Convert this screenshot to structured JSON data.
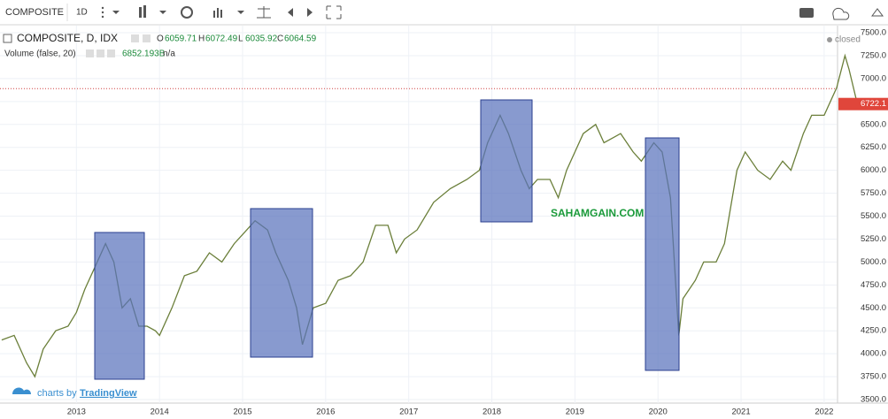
{
  "toolbar": {
    "symbol": "COMPOSITE",
    "interval": "1D"
  },
  "legend": {
    "title": "COMPOSITE, D, IDX",
    "o_label": "O",
    "open": "6059.71",
    "h_label": "H",
    "high": "6072.49",
    "l_label": "L",
    "low": "6035.92",
    "c_label": "C",
    "close": "6064.59",
    "volume_title": "Volume (false, 20)",
    "volume_value": "6852.193B",
    "volume_extra": "n/a",
    "status": "closed"
  },
  "watermark": "SAHAMGAIN.COM",
  "branding": {
    "prefix": "charts by",
    "name": "TradingView"
  },
  "chart_data": {
    "type": "line",
    "x": [
      2012.1,
      2012.25,
      2012.4,
      2012.5,
      2012.6,
      2012.75,
      2012.9,
      2013.0,
      2013.1,
      2013.2,
      2013.35,
      2013.45,
      2013.55,
      2013.65,
      2013.75,
      2013.85,
      2013.95,
      2014.0,
      2014.15,
      2014.3,
      2014.45,
      2014.6,
      2014.75,
      2014.9,
      2015.0,
      2015.15,
      2015.3,
      2015.4,
      2015.55,
      2015.65,
      2015.72,
      2015.85,
      2016.0,
      2016.15,
      2016.3,
      2016.45,
      2016.6,
      2016.75,
      2016.85,
      2016.95,
      2017.1,
      2017.3,
      2017.5,
      2017.7,
      2017.85,
      2017.95,
      2018.1,
      2018.2,
      2018.35,
      2018.45,
      2018.55,
      2018.7,
      2018.8,
      2018.9,
      2019.0,
      2019.1,
      2019.25,
      2019.35,
      2019.45,
      2019.55,
      2019.7,
      2019.8,
      2019.95,
      2020.05,
      2020.15,
      2020.25,
      2020.3,
      2020.45,
      2020.55,
      2020.7,
      2020.8,
      2020.95,
      2021.05,
      2021.2,
      2021.35,
      2021.5,
      2021.6,
      2021.75,
      2021.85,
      2022.0,
      2022.15,
      2022.25,
      2022.3,
      2022.4
    ],
    "series": [
      {
        "name": "COMPOSITE",
        "color": "#6b7f3a",
        "values": [
          4150,
          4200,
          3900,
          3750,
          4050,
          4250,
          4300,
          4450,
          4700,
          4900,
          5200,
          5000,
          4500,
          4600,
          4300,
          4300,
          4250,
          4200,
          4500,
          4850,
          4900,
          5100,
          5000,
          5200,
          5300,
          5450,
          5350,
          5100,
          4800,
          4500,
          4100,
          4500,
          4550,
          4800,
          4850,
          5000,
          5400,
          5400,
          5100,
          5250,
          5350,
          5650,
          5800,
          5900,
          6000,
          6300,
          6600,
          6400,
          6000,
          5800,
          5900,
          5900,
          5700,
          6000,
          6200,
          6400,
          6500,
          6300,
          6350,
          6400,
          6200,
          6100,
          6300,
          6200,
          5700,
          4200,
          4600,
          4800,
          5000,
          5000,
          5200,
          6000,
          6200,
          6000,
          5900,
          6100,
          6000,
          6400,
          6600,
          6600,
          6900,
          7250,
          7100,
          6722.1
        ]
      }
    ],
    "xlim": [
      2012.08,
      2022.47
    ],
    "xticks": [
      2013,
      2014,
      2015,
      2016,
      2017,
      2018,
      2019,
      2020,
      2021,
      2022
    ],
    "ylim": [
      3500,
      7500
    ],
    "yticks": [
      {
        "value": 3500,
        "label": "3500.0"
      },
      {
        "value": 3750,
        "label": "3750.0"
      },
      {
        "value": 4000,
        "label": "4000.0"
      },
      {
        "value": 4250,
        "label": "4250.0"
      },
      {
        "value": 4500,
        "label": "4500.0"
      },
      {
        "value": 4750,
        "label": "4750.0"
      },
      {
        "value": 5000,
        "label": "5000.0"
      },
      {
        "value": 5250,
        "label": "5250.0"
      },
      {
        "value": 5500,
        "label": "5500.0"
      },
      {
        "value": 5750,
        "label": "5750.0"
      },
      {
        "value": 6000,
        "label": "6000.0"
      },
      {
        "value": 6250,
        "label": "6250.0"
      },
      {
        "value": 6500,
        "label": "6500.0"
      },
      {
        "value": 6750,
        "label": "6750.0"
      },
      {
        "value": 7000,
        "label": "7000.0"
      },
      {
        "value": 7250,
        "label": "7250.0"
      },
      {
        "value": 7500,
        "label": "7500.0"
      }
    ],
    "grid": true,
    "last_price": 6722.1,
    "reference_line": 6890
  }
}
